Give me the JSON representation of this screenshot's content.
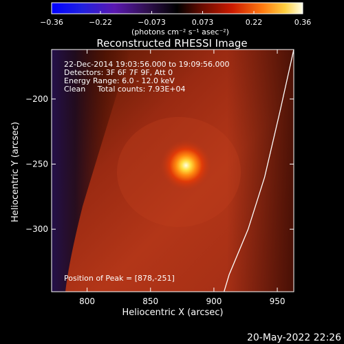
{
  "chart_data": {
    "type": "heatmap",
    "title": "Reconstructed RHESSI Image",
    "xlabel": "Heliocentric X (arcsec)",
    "ylabel": "Heliocentric Y (arcsec)",
    "xlim": [
      772,
      963
    ],
    "ylim": [
      -348,
      -162
    ],
    "xticks": [
      800,
      850,
      900,
      950
    ],
    "xtick_labels": [
      "800",
      "850",
      "900",
      "950"
    ],
    "yticks": [
      -200,
      -250,
      -300
    ],
    "ytick_labels": [
      "−200",
      "−250",
      "−300"
    ],
    "colorbar": {
      "min": -0.36,
      "max": 0.36,
      "ticks": [
        -0.36,
        -0.22,
        -0.073,
        0.073,
        0.22,
        0.36
      ],
      "tick_labels": [
        "−0.36",
        "−0.22",
        "−0.073",
        "0.073",
        "0.22",
        "0.36"
      ],
      "label": "(photons cm⁻² s⁻¹ asec⁻²)",
      "colormap": "RHESSI color table (blue-purple-black-red-orange-yellow-white)"
    },
    "peak": {
      "x": 878,
      "y": -251,
      "value": 0.36
    },
    "annotations": [
      "22-Dec-2014 19:03:56.000 to 19:09:56.000",
      "Detectors: 3F 6F 7F 9F, Att 0",
      "Energy Range: 6.0 - 12.0 keV",
      "Clean     Total counts: 7.93E+04",
      "Position of Peak = [878,-251]"
    ],
    "limb_curve": [
      [
        963,
        -162
      ],
      [
        952,
        -210
      ],
      [
        940,
        -260
      ],
      [
        927,
        -300
      ],
      [
        912,
        -335
      ],
      [
        908,
        -348
      ]
    ],
    "grid": false,
    "colors": {
      "background": "#000000",
      "foreground": "#ffffff",
      "negative": "#2a1258",
      "low_positive": "#6a1200",
      "mid_positive": "#b43416",
      "peak": "#ffffe0"
    }
  },
  "footer": {
    "date": "20-May-2022 22:26"
  }
}
